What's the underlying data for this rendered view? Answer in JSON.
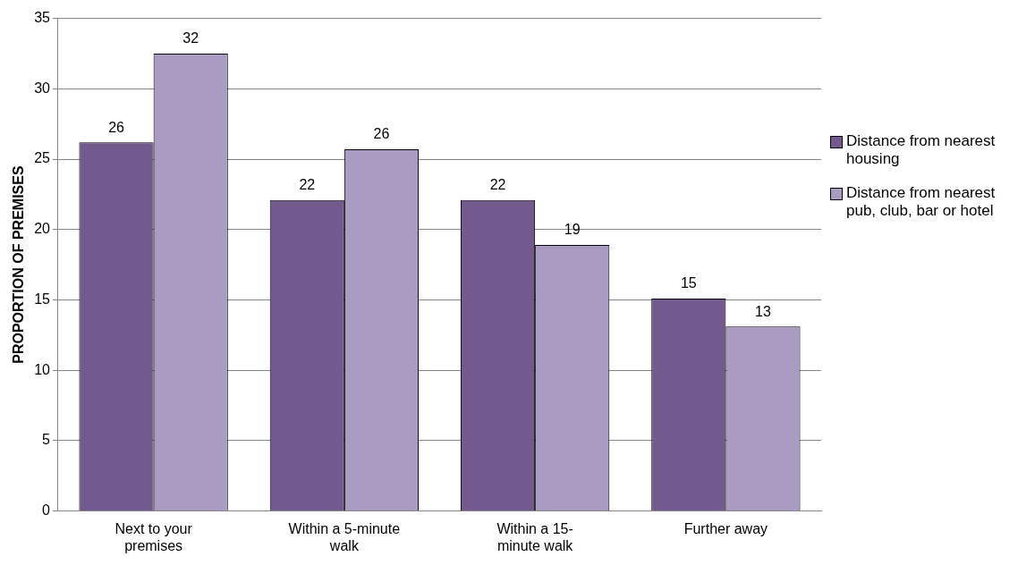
{
  "chart_data": {
    "type": "bar",
    "ylabel": "PROPORTION OF PREMISES",
    "categories": [
      "Next to your premises",
      "Within a 5-minute walk",
      "Within a 15-minute walk",
      "Further away"
    ],
    "series": [
      {
        "name": "Distance from nearest housing",
        "color": "#725a8f",
        "values": [
          26.2,
          22.1,
          22.1,
          15.1
        ],
        "value_labels": [
          "26",
          "22",
          "22",
          "15"
        ]
      },
      {
        "name": "Distance from nearest pub, club, bar or hotel",
        "color": "#a99bc1",
        "values": [
          32.5,
          25.7,
          18.9,
          13.1
        ],
        "value_labels": [
          "32",
          "26",
          "19",
          "13"
        ]
      }
    ],
    "ylim": [
      0,
      35
    ],
    "yticks": [
      0,
      5,
      10,
      15,
      20,
      25,
      30,
      35
    ],
    "grid": "y",
    "legend": "right"
  }
}
